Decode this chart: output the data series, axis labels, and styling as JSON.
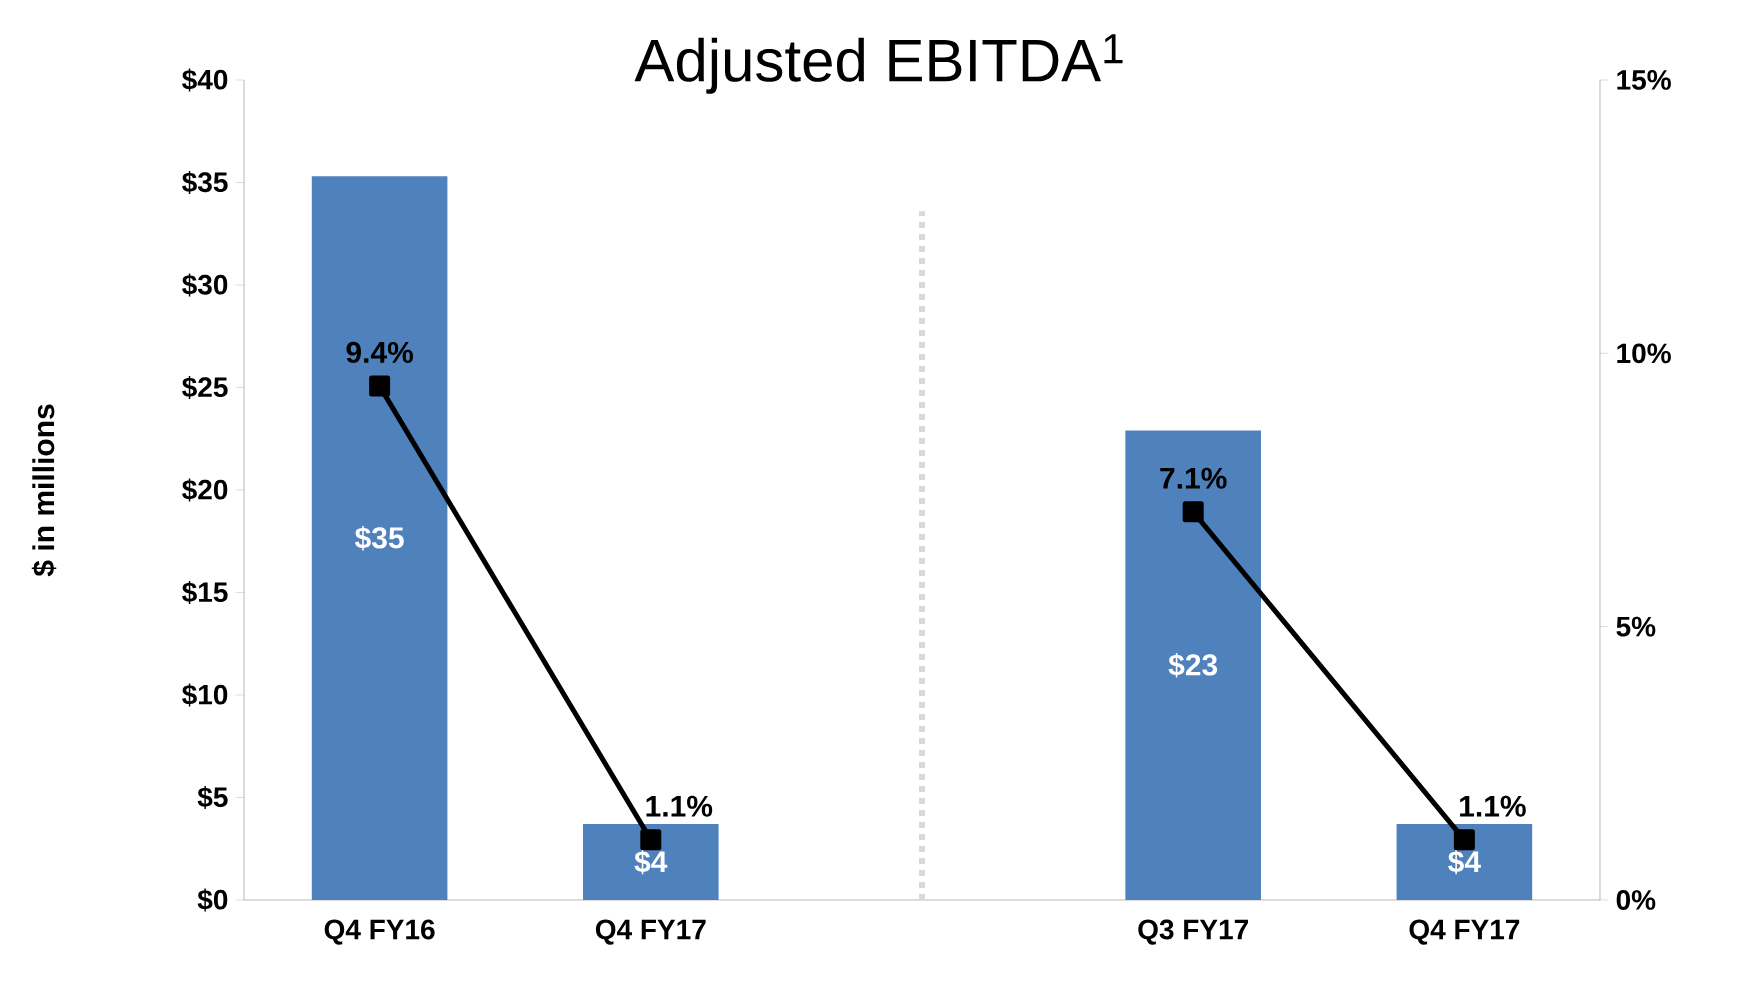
{
  "chart_data": {
    "type": "bar",
    "title": "Adjusted EBITDA$^{1}$",
    "ylabel": "$ in millions",
    "categories": [
      "Q4 FY16",
      "Q4 FY17",
      null,
      "Q3 FY17",
      "Q4 FY17"
    ],
    "series": [
      {
        "color": "#4f81bd",
        "values": [
          35.3,
          3.7,
          null,
          22.9,
          3.7
        ],
        "value_labels": [
          "$35",
          "$4",
          null,
          "$23",
          "$4"
        ]
      },
      {
        "type": "line",
        "axis": "y2",
        "color": "#000000",
        "values": [
          9.4,
          1.1,
          null,
          7.1,
          1.1
        ],
        "value_labels": [
          "9.4%",
          "1.1%",
          null,
          "7.1%",
          "1.1%"
        ]
      }
    ],
    "marker": "square",
    "ylim": [
      0,
      40
    ],
    "yticks": [
      {
        "value": 0,
        "label": "$0"
      },
      {
        "value": 5,
        "label": "$5"
      },
      {
        "value": 10,
        "label": "$10"
      },
      {
        "value": 15,
        "label": "$15"
      },
      {
        "value": 20,
        "label": "$20"
      },
      {
        "value": 25,
        "label": "$25"
      },
      {
        "value": 30,
        "label": "$30"
      },
      {
        "value": 35,
        "label": "$35"
      },
      {
        "value": 40,
        "label": "$40"
      }
    ],
    "y2lim": [
      0,
      15
    ],
    "y2ticks": [
      {
        "value": 0,
        "label": "0%"
      },
      {
        "value": 5,
        "label": "5%"
      },
      {
        "value": 10,
        "label": "10%"
      },
      {
        "value": 15,
        "label": "15%"
      }
    ]
  }
}
